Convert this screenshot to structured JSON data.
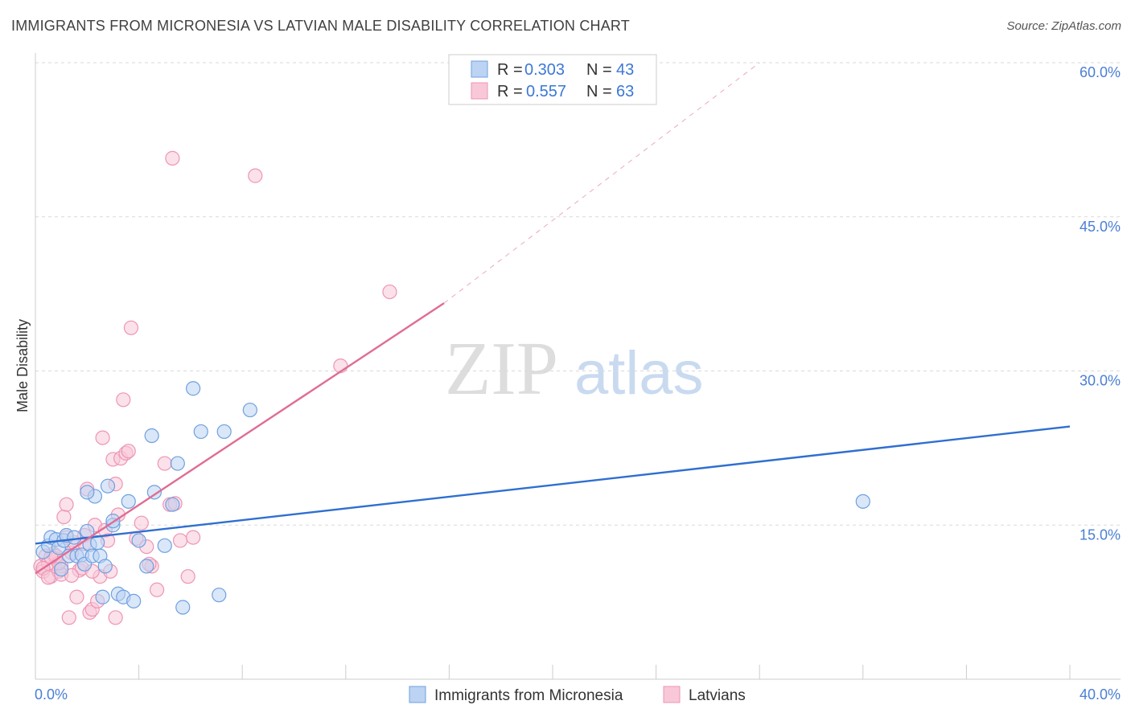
{
  "title": "IMMIGRANTS FROM MICRONESIA VS LATVIAN MALE DISABILITY CORRELATION CHART",
  "source": "Source: ZipAtlas.com",
  "watermark": {
    "zip": "ZIP",
    "atlas": "atlas"
  },
  "chart_data": {
    "type": "scatter",
    "title": "IMMIGRANTS FROM MICRONESIA VS LATVIAN MALE DISABILITY CORRELATION CHART",
    "xlabel": "",
    "ylabel": "Male Disability",
    "xlim": [
      0,
      40
    ],
    "ylim": [
      0,
      60
    ],
    "y_ticks": [
      {
        "value": 15,
        "label": "15.0%"
      },
      {
        "value": 30,
        "label": "30.0%"
      },
      {
        "value": 45,
        "label": "45.0%"
      },
      {
        "value": 60,
        "label": "60.0%"
      }
    ],
    "x_tick_values": [
      0,
      4,
      8,
      12,
      16,
      20,
      24,
      28,
      32,
      36,
      40
    ],
    "x_labels": {
      "left": "0.0%",
      "right": "40.0%"
    },
    "legend": {
      "placement": "top-center",
      "entries": [
        {
          "r_label": "R =",
          "r_value": "0.303",
          "n_label": "N =",
          "n_value": "43"
        },
        {
          "r_label": "R =",
          "r_value": "0.557",
          "n_label": "N =",
          "n_value": "63"
        }
      ]
    },
    "series": [
      {
        "name": "Immigrants from Micronesia",
        "color": "#6fa0e0",
        "fill": "#bcd3f3",
        "line_color": "#2f6fd0",
        "trend": {
          "x0": 0,
          "y0": 13.2,
          "x1": 40,
          "y1": 24.6
        },
        "points": [
          [
            0.3,
            12.4
          ],
          [
            0.5,
            13.0
          ],
          [
            0.6,
            13.8
          ],
          [
            0.8,
            13.6
          ],
          [
            0.9,
            12.8
          ],
          [
            1.1,
            13.5
          ],
          [
            1.2,
            14.0
          ],
          [
            1.3,
            12.0
          ],
          [
            1.5,
            13.8
          ],
          [
            1.6,
            12.0
          ],
          [
            1.8,
            12.1
          ],
          [
            1.9,
            11.2
          ],
          [
            2.0,
            14.4
          ],
          [
            2.1,
            13.1
          ],
          [
            2.2,
            12.0
          ],
          [
            2.3,
            17.8
          ],
          [
            2.4,
            13.3
          ],
          [
            2.5,
            12.0
          ],
          [
            2.6,
            8.0
          ],
          [
            2.7,
            11.0
          ],
          [
            2.8,
            18.8
          ],
          [
            3.0,
            15.0
          ],
          [
            3.2,
            8.3
          ],
          [
            3.4,
            8.0
          ],
          [
            3.6,
            17.3
          ],
          [
            3.8,
            7.6
          ],
          [
            4.0,
            13.5
          ],
          [
            4.3,
            11.0
          ],
          [
            4.5,
            23.7
          ],
          [
            4.6,
            18.2
          ],
          [
            5.0,
            13.0
          ],
          [
            5.3,
            17.0
          ],
          [
            5.5,
            21.0
          ],
          [
            5.7,
            7.0
          ],
          [
            6.1,
            28.3
          ],
          [
            6.4,
            24.1
          ],
          [
            7.1,
            8.2
          ],
          [
            7.3,
            24.1
          ],
          [
            8.3,
            26.2
          ],
          [
            2.0,
            18.2
          ],
          [
            3.0,
            15.4
          ],
          [
            1.0,
            10.7
          ],
          [
            32.0,
            17.3
          ]
        ]
      },
      {
        "name": "Latvians",
        "color": "#ee95b4",
        "fill": "#f8c8d8",
        "line_color": "#e06c95",
        "trend": {
          "x0": 0,
          "y0": 10.3,
          "x1": 15.8,
          "y1": 36.6
        },
        "trend_ext": {
          "x0": 15.8,
          "y0": 36.6,
          "x1": 28.0,
          "y1": 60.0
        },
        "points": [
          [
            0.2,
            11.0
          ],
          [
            0.3,
            10.5
          ],
          [
            0.4,
            12.0
          ],
          [
            0.5,
            11.3
          ],
          [
            0.6,
            10.0
          ],
          [
            0.7,
            12.2
          ],
          [
            0.8,
            11.7
          ],
          [
            0.9,
            10.5
          ],
          [
            1.0,
            11.0
          ],
          [
            1.1,
            15.8
          ],
          [
            1.2,
            17.0
          ],
          [
            1.3,
            6.0
          ],
          [
            1.4,
            12.3
          ],
          [
            1.5,
            13.3
          ],
          [
            1.6,
            8.0
          ],
          [
            1.7,
            10.6
          ],
          [
            1.8,
            10.8
          ],
          [
            1.9,
            14.0
          ],
          [
            2.0,
            18.5
          ],
          [
            2.1,
            6.5
          ],
          [
            2.2,
            6.8
          ],
          [
            2.3,
            15.0
          ],
          [
            2.4,
            7.6
          ],
          [
            2.5,
            10.0
          ],
          [
            2.6,
            23.5
          ],
          [
            2.7,
            14.5
          ],
          [
            2.8,
            13.5
          ],
          [
            2.9,
            10.5
          ],
          [
            3.0,
            21.4
          ],
          [
            3.1,
            19.0
          ],
          [
            3.2,
            16.0
          ],
          [
            3.3,
            21.5
          ],
          [
            3.4,
            27.2
          ],
          [
            3.5,
            22.0
          ],
          [
            3.6,
            22.2
          ],
          [
            3.7,
            34.2
          ],
          [
            3.9,
            13.7
          ],
          [
            4.1,
            15.2
          ],
          [
            4.3,
            12.9
          ],
          [
            4.5,
            11.0
          ],
          [
            4.7,
            8.7
          ],
          [
            5.0,
            21.0
          ],
          [
            5.2,
            17.0
          ],
          [
            5.4,
            17.1
          ],
          [
            5.6,
            13.5
          ],
          [
            5.9,
            10.0
          ],
          [
            6.1,
            13.8
          ],
          [
            5.3,
            50.7
          ],
          [
            8.5,
            49.0
          ],
          [
            11.8,
            30.5
          ],
          [
            13.7,
            37.7
          ],
          [
            0.3,
            10.8
          ],
          [
            0.5,
            9.9
          ],
          [
            0.8,
            12.0
          ],
          [
            1.0,
            10.2
          ],
          [
            1.4,
            10.1
          ],
          [
            1.9,
            13.2
          ],
          [
            2.2,
            10.5
          ],
          [
            3.1,
            6.0
          ],
          [
            4.4,
            11.2
          ],
          [
            1.2,
            13.8
          ],
          [
            0.9,
            11.3
          ],
          [
            0.6,
            11.9
          ]
        ]
      }
    ]
  }
}
